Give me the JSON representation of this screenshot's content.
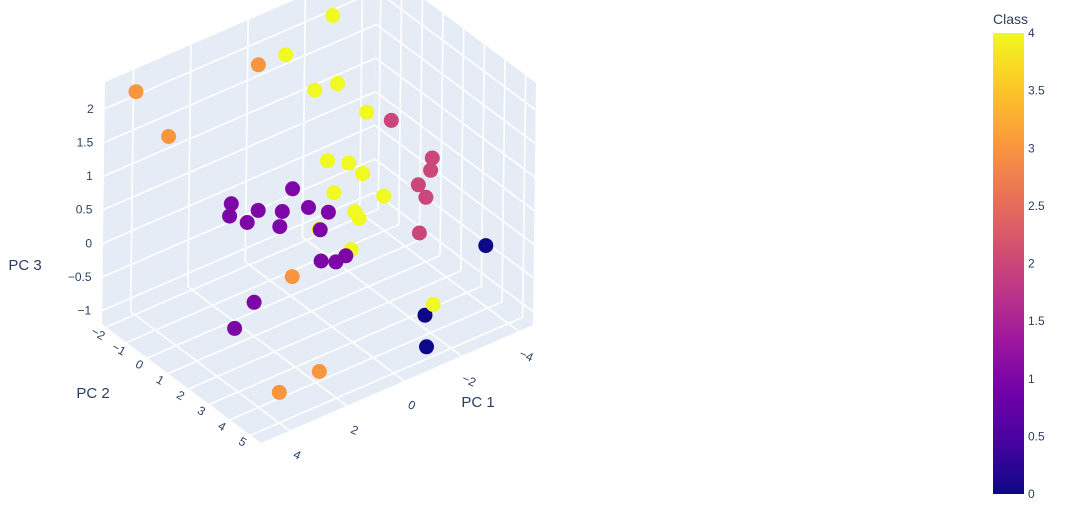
{
  "chart_data": {
    "type": "scatter",
    "projection": "3d",
    "axes": {
      "x": {
        "title": "PC 1",
        "range": [
          -4.5,
          5
        ],
        "ticks": [
          "−4",
          "−2",
          "0",
          "2",
          "4"
        ]
      },
      "y": {
        "title": "PC 2",
        "range": [
          -2.2,
          5.5
        ],
        "ticks": [
          "−2",
          "−1",
          "0",
          "1",
          "2",
          "3",
          "4",
          "5"
        ]
      },
      "z": {
        "title": "PC 3",
        "range": [
          -1.2,
          2.4
        ],
        "ticks": [
          "−1",
          "−0.5",
          "0",
          "0.5",
          "1",
          "1.5",
          "2"
        ]
      }
    },
    "grid": true,
    "colorbar": {
      "title": "Class",
      "range": [
        0,
        4
      ],
      "ticks": [
        "0",
        "0.5",
        "1",
        "1.5",
        "2",
        "2.5",
        "3",
        "3.5",
        "4"
      ],
      "colorscale": [
        "#0d0887",
        "#46039f",
        "#7201a8",
        "#9c179e",
        "#bd3786",
        "#d8576b",
        "#ed7953",
        "#fb9f3a",
        "#fdca26",
        "#f0f921"
      ]
    },
    "points": [
      {
        "x": 4.2,
        "y": -1.8,
        "z": 2.2,
        "class": 3
      },
      {
        "x": 0.5,
        "y": -1.0,
        "z": 2.1,
        "class": 3
      },
      {
        "x": 3.4,
        "y": -1.3,
        "z": 1.5,
        "class": 3
      },
      {
        "x": 2.0,
        "y": 2.8,
        "z": 0.1,
        "class": 3
      },
      {
        "x": 3.5,
        "y": 4.3,
        "z": -1.0,
        "class": 3
      },
      {
        "x": 2.4,
        "y": 4.7,
        "z": -0.8,
        "class": 3
      },
      {
        "x": -0.6,
        "y": -1.2,
        "z": 2.0,
        "class": 4
      },
      {
        "x": -2.6,
        "y": -1.7,
        "z": 2.1,
        "class": 4
      },
      {
        "x": -3.8,
        "y": -1.9,
        "z": 2.4,
        "class": 4
      },
      {
        "x": -1.2,
        "y": -0.6,
        "z": 1.5,
        "class": 4
      },
      {
        "x": -1.7,
        "y": -0.2,
        "z": 1.6,
        "class": 4
      },
      {
        "x": -2.3,
        "y": 0.4,
        "z": 1.2,
        "class": 4
      },
      {
        "x": -0.8,
        "y": 0.6,
        "z": 0.8,
        "class": 4
      },
      {
        "x": -1.4,
        "y": 0.8,
        "z": 0.7,
        "class": 4
      },
      {
        "x": -1.6,
        "y": 1.2,
        "z": 0.6,
        "class": 4
      },
      {
        "x": -0.6,
        "y": 1.2,
        "z": 0.5,
        "class": 4
      },
      {
        "x": -0.9,
        "y": 1.8,
        "z": 0.3,
        "class": 4
      },
      {
        "x": -2.2,
        "y": 1.4,
        "z": 0.2,
        "class": 4
      },
      {
        "x": -1.2,
        "y": 1.6,
        "z": 0.1,
        "class": 4
      },
      {
        "x": 0.2,
        "y": 1.6,
        "z": 0.2,
        "class": 4
      },
      {
        "x": -0.5,
        "y": 2.2,
        "z": -0.1,
        "class": 4
      },
      {
        "x": -1.5,
        "y": 4.8,
        "z": -0.5,
        "class": 4
      },
      {
        "x": 3.0,
        "y": 1.2,
        "z": 1.0,
        "class": 1
      },
      {
        "x": 3.2,
        "y": 1.4,
        "z": 0.9,
        "class": 1
      },
      {
        "x": 2.8,
        "y": 1.7,
        "z": 0.8,
        "class": 1
      },
      {
        "x": 2.2,
        "y": 1.4,
        "z": 0.8,
        "class": 1
      },
      {
        "x": 1.5,
        "y": 1.6,
        "z": 0.7,
        "class": 1
      },
      {
        "x": 1.8,
        "y": 1.9,
        "z": 0.6,
        "class": 1
      },
      {
        "x": 1.0,
        "y": 1.4,
        "z": 0.9,
        "class": 1
      },
      {
        "x": 0.8,
        "y": 1.9,
        "z": 0.7,
        "class": 1
      },
      {
        "x": 0.6,
        "y": 2.2,
        "z": 0.4,
        "class": 1
      },
      {
        "x": 0.1,
        "y": 1.9,
        "z": 0.5,
        "class": 1
      },
      {
        "x": 0.7,
        "y": 2.4,
        "z": 0.0,
        "class": 1
      },
      {
        "x": 0.4,
        "y": 2.7,
        "z": 0.0,
        "class": 1
      },
      {
        "x": 0.2,
        "y": 2.9,
        "z": 0.1,
        "class": 1
      },
      {
        "x": 3.4,
        "y": 2.9,
        "z": 0.0,
        "class": 1
      },
      {
        "x": 4.0,
        "y": 2.8,
        "z": -0.3,
        "class": 1
      },
      {
        "x": -2.8,
        "y": 0.9,
        "z": 1.1,
        "class": 2
      },
      {
        "x": -3.6,
        "y": 1.8,
        "z": 0.6,
        "class": 2
      },
      {
        "x": -3.1,
        "y": 2.2,
        "z": 0.2,
        "class": 2
      },
      {
        "x": -2.9,
        "y": 2.1,
        "z": 0.4,
        "class": 2
      },
      {
        "x": -3.4,
        "y": 2.0,
        "z": 0.5,
        "class": 2
      },
      {
        "x": -2.3,
        "y": 3.0,
        "z": 0.0,
        "class": 2
      },
      {
        "x": -1.8,
        "y": 4.0,
        "z": -0.9,
        "class": 0
      },
      {
        "x": -1.5,
        "y": 4.5,
        "z": -1.2,
        "class": 0
      },
      {
        "x": -4.2,
        "y": 3.6,
        "z": -0.4,
        "class": 0
      }
    ]
  }
}
